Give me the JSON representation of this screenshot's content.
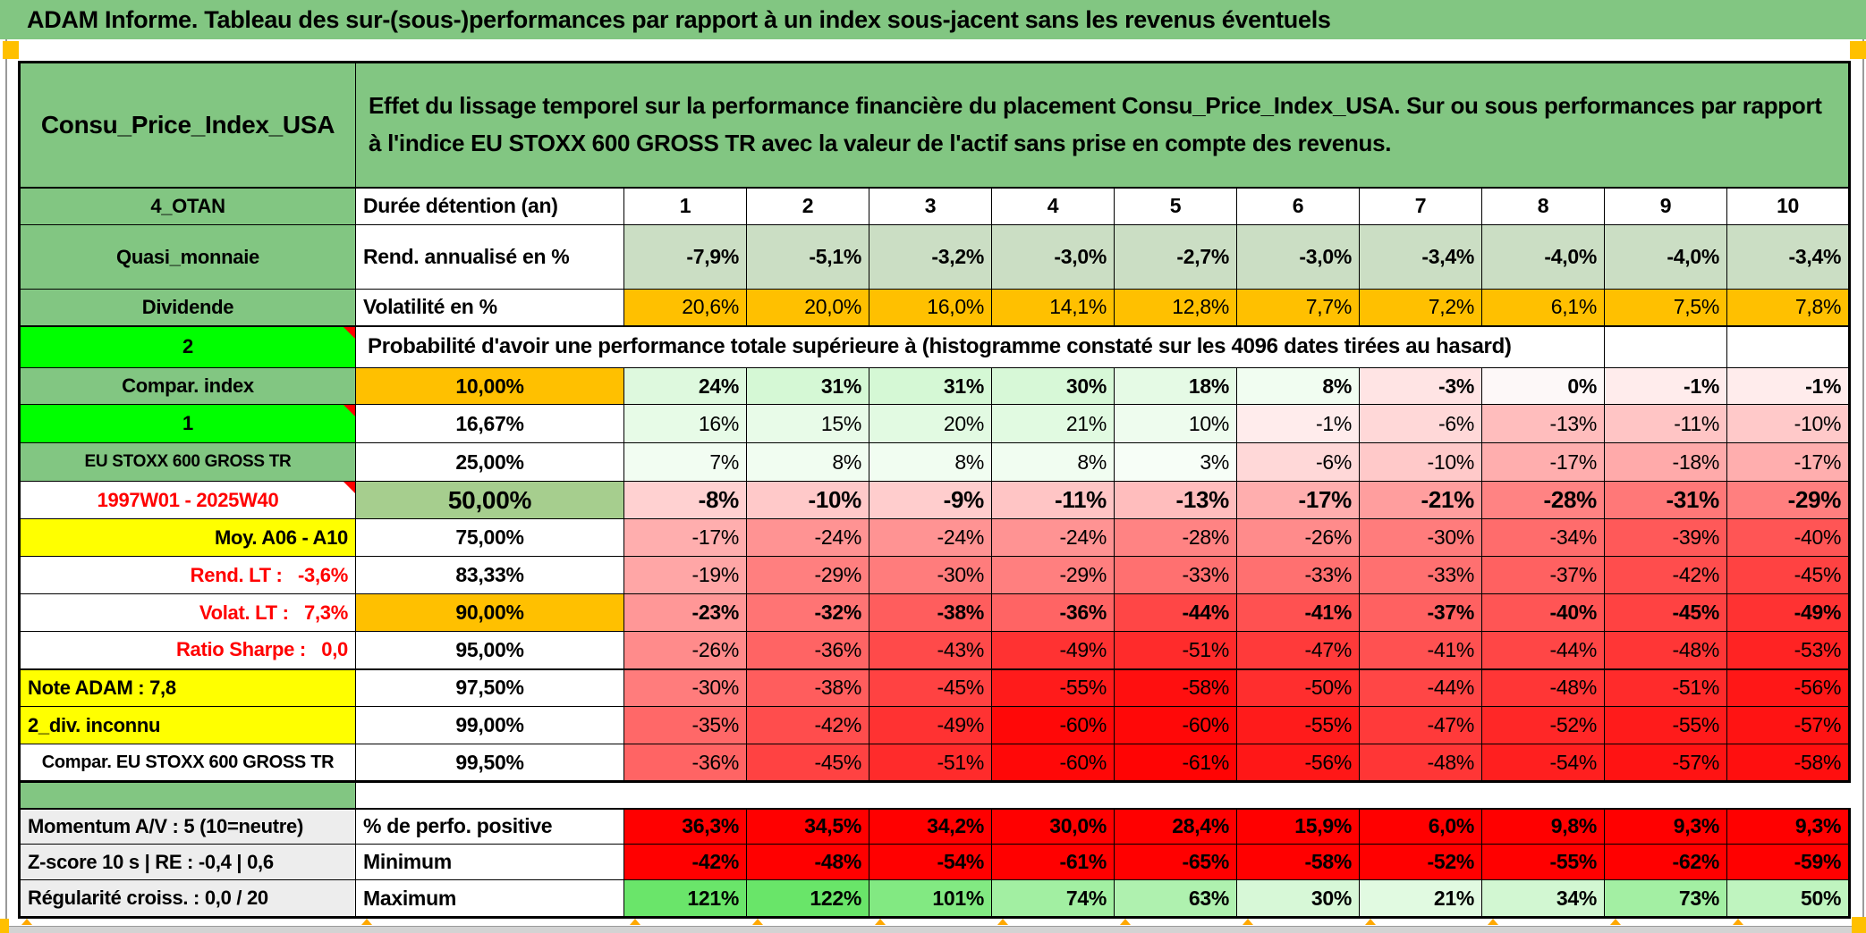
{
  "app": {
    "title": "ADAM Informe. Tableau des sur-(sous-)performances par rapport à un index sous-jacent sans les revenus éventuels"
  },
  "markers": {
    "corner_color": "#FFC000",
    "caret_color": "#FFA800",
    "comment_triangle_color": "#FF0000"
  },
  "header": {
    "name": "Consu_Price_Index_USA",
    "description": "Effet du lissage temporel sur la performance financière du placement Consu_Price_Index_USA. Sur ou sous performances par rapport à l'indice EU STOXX 600 GROSS TR avec la valeur de l'actif sans prise en compte des revenus."
  },
  "columns": [
    "1",
    "2",
    "3",
    "4",
    "5",
    "6",
    "7",
    "8",
    "9",
    "10"
  ],
  "rows": [
    {
      "type": "columns",
      "left": {
        "text": "4_OTAN",
        "bg": "#82C682"
      },
      "mid": {
        "text": "Durée détention (an)",
        "align": "left"
      }
    },
    {
      "type": "data",
      "left": {
        "text": "Quasi_monnaie",
        "bg": "#82C682"
      },
      "mid": {
        "text": "Rend. annualisé en %",
        "align": "left"
      },
      "bold": true,
      "color": "#CBDEC4",
      "values": [
        "-7,9%",
        "-5,1%",
        "-3,2%",
        "-3,0%",
        "-2,7%",
        "-3,0%",
        "-3,4%",
        "-4,0%",
        "-4,0%",
        "-3,4%"
      ]
    },
    {
      "type": "data",
      "left": {
        "text": "Dividende",
        "bg": "#82C682"
      },
      "mid": {
        "text": "Volatilité en %",
        "align": "left"
      },
      "bold": false,
      "color": "#FFC000",
      "values": [
        "20,6%",
        "20,0%",
        "16,0%",
        "14,1%",
        "12,8%",
        "7,7%",
        "7,2%",
        "6,1%",
        "7,5%",
        "7,8%"
      ]
    },
    {
      "type": "banner",
      "left": {
        "text": "2",
        "bg": "#00FF00",
        "comment": true
      },
      "text": "Probabilité d'avoir une performance totale supérieure à (histogramme constaté sur les 4096 dates tirées au hasard)",
      "span": 9,
      "empty": 2
    },
    {
      "type": "data",
      "left": {
        "text": "Compar. index",
        "bg": "#82C682"
      },
      "mid": {
        "text": "10,00%",
        "bg": "#FFC000"
      },
      "bold": true,
      "values": [
        "24%",
        "31%",
        "31%",
        "30%",
        "18%",
        "8%",
        "-3%",
        "0%",
        "-1%",
        "-1%"
      ],
      "colors": [
        "#DEF9DE",
        "#D5F8D5",
        "#D5F8D5",
        "#D7F8D7",
        "#E5FAE5",
        "#F1FDF1",
        "#FFE4E4",
        "#FDF8F8",
        "#FFECEC",
        "#FFECEC"
      ]
    },
    {
      "type": "data",
      "left": {
        "text": "1",
        "bg": "#00FF00",
        "comment": true
      },
      "mid": {
        "text": "16,67%"
      },
      "values": [
        "16%",
        "15%",
        "20%",
        "21%",
        "10%",
        "-1%",
        "-6%",
        "-13%",
        "-11%",
        "-10%"
      ],
      "colors": [
        "#E7FBE7",
        "#E8FBE8",
        "#E2FAE2",
        "#E1FAE1",
        "#EEFCEE",
        "#FFECEC",
        "#FFD8D8",
        "#FFBDBD",
        "#FFC5C5",
        "#FFC9C9"
      ]
    },
    {
      "type": "data",
      "left": {
        "text": "EU STOXX 600 GROSS TR",
        "bg": "#82C682",
        "size": 19
      },
      "mid": {
        "text": "25,00%"
      },
      "values": [
        "7%",
        "8%",
        "8%",
        "8%",
        "3%",
        "-6%",
        "-10%",
        "-17%",
        "-18%",
        "-17%"
      ],
      "colors": [
        "#F2FDF2",
        "#F1FDF1",
        "#F1FDF1",
        "#F1FDF1",
        "#F7FEF7",
        "#FFD8D8",
        "#FFC9C9",
        "#FFAEAE",
        "#FFAAAA",
        "#FFAEAE"
      ]
    },
    {
      "type": "data",
      "left": {
        "text": "1997W01 - 2025W40",
        "color": "#FF0000",
        "comment": true
      },
      "mid": {
        "text": "50,00%",
        "bg": "#A6CE8E",
        "size": 28
      },
      "bold": true,
      "size": 26,
      "values": [
        "-8%",
        "-10%",
        "-9%",
        "-11%",
        "-13%",
        "-17%",
        "-21%",
        "-28%",
        "-31%",
        "-29%"
      ],
      "colors": [
        "#FFD1D1",
        "#FFC9C9",
        "#FFCDCD",
        "#FFC5C5",
        "#FFBDBD",
        "#FFAEAE",
        "#FF9E9E",
        "#FF8383",
        "#FF7878",
        "#FF7F7F"
      ]
    },
    {
      "type": "data",
      "left": {
        "text": "Moy. A06 - A10",
        "bg": "#FFFF00",
        "align": "right"
      },
      "mid": {
        "text": "75,00%"
      },
      "values": [
        "-17%",
        "-24%",
        "-24%",
        "-24%",
        "-28%",
        "-26%",
        "-30%",
        "-34%",
        "-39%",
        "-40%"
      ],
      "colors": [
        "#FFAEAE",
        "#FF9393",
        "#FF9393",
        "#FF9393",
        "#FF8383",
        "#FF8B8B",
        "#FF7C7C",
        "#FF6C6C",
        "#FF5959",
        "#FF5555"
      ]
    },
    {
      "type": "data",
      "left": {
        "text": "Rend. LT :   -3,6%",
        "color": "#FF0000",
        "align": "right"
      },
      "mid": {
        "text": "83,33%"
      },
      "values": [
        "-19%",
        "-29%",
        "-30%",
        "-29%",
        "-33%",
        "-33%",
        "-33%",
        "-37%",
        "-42%",
        "-45%"
      ],
      "colors": [
        "#FFA6A6",
        "#FF7F7F",
        "#FF7C7C",
        "#FF7F7F",
        "#FF7070",
        "#FF7070",
        "#FF7070",
        "#FF6161",
        "#FF4D4D",
        "#FF4242"
      ]
    },
    {
      "type": "data",
      "left": {
        "text": "Volat. LT :   7,3%",
        "color": "#FF0000",
        "align": "right"
      },
      "mid": {
        "text": "90,00%",
        "bg": "#FFC000"
      },
      "bold": true,
      "values": [
        "-23%",
        "-32%",
        "-38%",
        "-36%",
        "-44%",
        "-41%",
        "-37%",
        "-40%",
        "-45%",
        "-49%"
      ],
      "colors": [
        "#FF9797",
        "#FF7474",
        "#FF5D5D",
        "#FF6464",
        "#FF4646",
        "#FF5151",
        "#FF6161",
        "#FF5555",
        "#FF4242",
        "#FF3232"
      ]
    },
    {
      "type": "data",
      "left": {
        "text": "Ratio Sharpe :   0,0",
        "color": "#FF0000",
        "align": "right"
      },
      "mid": {
        "text": "95,00%"
      },
      "values": [
        "-26%",
        "-36%",
        "-43%",
        "-49%",
        "-51%",
        "-47%",
        "-41%",
        "-44%",
        "-48%",
        "-53%"
      ],
      "colors": [
        "#FF8B8B",
        "#FF6464",
        "#FF4A4A",
        "#FF3232",
        "#FF2B2B",
        "#FF3A3A",
        "#FF5151",
        "#FF4646",
        "#FF3636",
        "#FF2323"
      ]
    },
    {
      "type": "data",
      "left": {
        "text": "Note ADAM : 7,8",
        "bg": "#FFFF00",
        "align": "left"
      },
      "mid": {
        "text": "97,50%"
      },
      "values": [
        "-30%",
        "-38%",
        "-45%",
        "-55%",
        "-58%",
        "-50%",
        "-44%",
        "-48%",
        "-51%",
        "-56%"
      ],
      "colors": [
        "#FF7C7C",
        "#FF5D5D",
        "#FF4242",
        "#FF1B1B",
        "#FF0F0F",
        "#FF2E2E",
        "#FF4646",
        "#FF3636",
        "#FF2B2B",
        "#FF1717"
      ]
    },
    {
      "type": "data",
      "left": {
        "text": "2_div. inconnu",
        "bg": "#FFFF00",
        "align": "left"
      },
      "mid": {
        "text": "99,00%"
      },
      "values": [
        "-35%",
        "-42%",
        "-49%",
        "-60%",
        "-60%",
        "-55%",
        "-47%",
        "-52%",
        "-55%",
        "-57%"
      ],
      "colors": [
        "#FF6868",
        "#FF4D4D",
        "#FF3232",
        "#FF0808",
        "#FF0808",
        "#FF1B1B",
        "#FF3A3A",
        "#FF2727",
        "#FF1B1B",
        "#FF1313"
      ]
    },
    {
      "type": "data",
      "left": {
        "text": "Compar. EU STOXX 600 GROSS TR",
        "size": 20
      },
      "mid": {
        "text": "99,50%"
      },
      "values": [
        "-36%",
        "-45%",
        "-51%",
        "-60%",
        "-61%",
        "-56%",
        "-48%",
        "-54%",
        "-57%",
        "-58%"
      ],
      "colors": [
        "#FF6464",
        "#FF4242",
        "#FF2B2B",
        "#FF0808",
        "#FF0404",
        "#FF1717",
        "#FF3636",
        "#FF1F1F",
        "#FF1313",
        "#FF0F0F"
      ]
    },
    {
      "type": "spacer",
      "left": {
        "bg": "#82C682"
      }
    },
    {
      "type": "data",
      "left": {
        "text": "Momentum A/V : 5 (10=neutre)",
        "bg": "#EDEDED",
        "align": "left"
      },
      "mid": {
        "text": "% de perfo. positive",
        "align": "left"
      },
      "bold": true,
      "color": "#FF0000",
      "values": [
        "36,3%",
        "34,5%",
        "34,2%",
        "30,0%",
        "28,4%",
        "15,9%",
        "6,0%",
        "9,8%",
        "9,3%",
        "9,3%"
      ]
    },
    {
      "type": "data",
      "left": {
        "text": "Z-score 10 s | RE : -0,4 | 0,6",
        "bg": "#EDEDED",
        "align": "left"
      },
      "mid": {
        "text": "Minimum",
        "align": "left"
      },
      "bold": true,
      "color": "#FF0000",
      "values": [
        "-42%",
        "-48%",
        "-54%",
        "-61%",
        "-65%",
        "-58%",
        "-52%",
        "-55%",
        "-62%",
        "-59%"
      ]
    },
    {
      "type": "data",
      "left": {
        "text": "Régularité croiss. : 0,0 / 20",
        "bg": "#EDEDED",
        "align": "left"
      },
      "mid": {
        "text": "Maximum",
        "align": "left"
      },
      "bold": true,
      "values": [
        "121%",
        "122%",
        "101%",
        "74%",
        "63%",
        "30%",
        "21%",
        "34%",
        "73%",
        "50%"
      ],
      "colors": [
        "#6AE56A",
        "#69E569",
        "#82E982",
        "#A2EFA2",
        "#AFF1AF",
        "#D7F8D7",
        "#E1FAE1",
        "#D2F7D2",
        "#A3EFA3",
        "#BFF4BF"
      ]
    }
  ]
}
